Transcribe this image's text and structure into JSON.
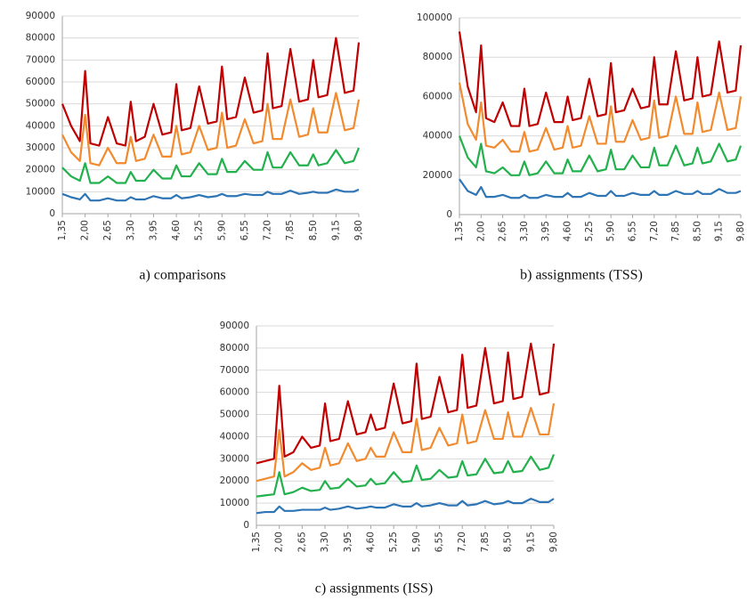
{
  "chart_data": [
    {
      "type": "line",
      "caption": "a) comparisons",
      "x": [
        1.35,
        1.6,
        1.85,
        2.0,
        2.15,
        2.4,
        2.65,
        2.9,
        3.15,
        3.3,
        3.45,
        3.7,
        3.95,
        4.2,
        4.45,
        4.6,
        4.75,
        5.0,
        5.25,
        5.5,
        5.75,
        5.9,
        6.05,
        6.3,
        6.55,
        6.8,
        7.05,
        7.2,
        7.35,
        7.6,
        7.85,
        8.1,
        8.35,
        8.5,
        8.65,
        8.9,
        9.15,
        9.4,
        9.65,
        9.8
      ],
      "xlim": [
        1.35,
        9.8
      ],
      "xticks": [
        {
          "value": 1.35,
          "label": "1,35"
        },
        {
          "value": 2.0,
          "label": "2,00"
        },
        {
          "value": 2.65,
          "label": "2,65"
        },
        {
          "value": 3.3,
          "label": "3,30"
        },
        {
          "value": 3.95,
          "label": "3,95"
        },
        {
          "value": 4.6,
          "label": "4,60"
        },
        {
          "value": 5.25,
          "label": "5,25"
        },
        {
          "value": 5.9,
          "label": "5,90"
        },
        {
          "value": 6.55,
          "label": "6,55"
        },
        {
          "value": 7.2,
          "label": "7,20"
        },
        {
          "value": 7.85,
          "label": "7,85"
        },
        {
          "value": 8.5,
          "label": "8,50"
        },
        {
          "value": 9.15,
          "label": "9,15"
        },
        {
          "value": 9.8,
          "label": "9,80"
        }
      ],
      "ylim": [
        0,
        90000
      ],
      "yticks": [
        0,
        10000,
        20000,
        30000,
        40000,
        50000,
        60000,
        70000,
        80000,
        90000
      ],
      "grid": true,
      "series": [
        {
          "color": "#c00000",
          "values": [
            50000,
            40000,
            33000,
            65000,
            32000,
            31000,
            44000,
            32000,
            31000,
            51000,
            33000,
            35000,
            50000,
            36000,
            37000,
            59000,
            38000,
            39000,
            58000,
            41000,
            42000,
            67000,
            43000,
            44000,
            62000,
            46000,
            47000,
            73000,
            48000,
            49000,
            75000,
            51000,
            52000,
            70000,
            53000,
            54000,
            80000,
            55000,
            56000,
            78000
          ]
        },
        {
          "color": "#f28a2e",
          "values": [
            36000,
            28000,
            24000,
            45000,
            23000,
            22000,
            30000,
            23000,
            23000,
            35000,
            24000,
            25000,
            36000,
            26000,
            26000,
            40000,
            27000,
            28000,
            40000,
            29000,
            30000,
            46000,
            30000,
            31000,
            43000,
            32000,
            33000,
            50000,
            34000,
            34000,
            52000,
            35000,
            36000,
            48000,
            37000,
            37000,
            55000,
            38000,
            39000,
            52000
          ]
        },
        {
          "color": "#22b14c",
          "values": [
            21000,
            17000,
            15000,
            23000,
            14000,
            14000,
            17000,
            14000,
            14000,
            19000,
            15000,
            15000,
            20000,
            16000,
            16000,
            22000,
            17000,
            17000,
            23000,
            18000,
            18000,
            25000,
            19000,
            19000,
            24000,
            20000,
            20000,
            28000,
            21000,
            21000,
            28000,
            22000,
            22000,
            27000,
            22000,
            23000,
            29000,
            23000,
            24000,
            30000
          ]
        },
        {
          "color": "#2e75b6",
          "values": [
            9000,
            7500,
            6500,
            9000,
            6000,
            6000,
            7000,
            6000,
            6000,
            7500,
            6500,
            6500,
            8000,
            7000,
            7000,
            8500,
            7000,
            7500,
            8500,
            7500,
            8000,
            9000,
            8000,
            8000,
            9000,
            8500,
            8500,
            10000,
            9000,
            9000,
            10500,
            9000,
            9500,
            10000,
            9500,
            9500,
            11000,
            10000,
            10000,
            11000
          ]
        }
      ]
    },
    {
      "type": "line",
      "caption": "b) assignments (TSS)",
      "x": [
        1.35,
        1.6,
        1.85,
        2.0,
        2.15,
        2.4,
        2.65,
        2.9,
        3.15,
        3.3,
        3.45,
        3.7,
        3.95,
        4.2,
        4.45,
        4.6,
        4.75,
        5.0,
        5.25,
        5.5,
        5.75,
        5.9,
        6.05,
        6.3,
        6.55,
        6.8,
        7.05,
        7.2,
        7.35,
        7.6,
        7.85,
        8.1,
        8.35,
        8.5,
        8.65,
        8.9,
        9.15,
        9.4,
        9.65,
        9.8
      ],
      "xlim": [
        1.35,
        9.8
      ],
      "xticks": [
        {
          "value": 1.35,
          "label": "1,35"
        },
        {
          "value": 2.0,
          "label": "2,00"
        },
        {
          "value": 2.65,
          "label": "2,65"
        },
        {
          "value": 3.3,
          "label": "3,30"
        },
        {
          "value": 3.95,
          "label": "3,95"
        },
        {
          "value": 4.6,
          "label": "4,60"
        },
        {
          "value": 5.25,
          "label": "5,25"
        },
        {
          "value": 5.9,
          "label": "5,90"
        },
        {
          "value": 6.55,
          "label": "6,55"
        },
        {
          "value": 7.2,
          "label": "7,20"
        },
        {
          "value": 7.85,
          "label": "7,85"
        },
        {
          "value": 8.5,
          "label": "8,50"
        },
        {
          "value": 9.15,
          "label": "9,15"
        },
        {
          "value": 9.8,
          "label": "9,80"
        }
      ],
      "ylim": [
        0,
        100000
      ],
      "yticks": [
        0,
        20000,
        40000,
        60000,
        80000,
        100000
      ],
      "grid": true,
      "series": [
        {
          "color": "#c00000",
          "values": [
            93000,
            65000,
            52000,
            86000,
            49000,
            47000,
            57000,
            45000,
            45000,
            64000,
            45000,
            46000,
            62000,
            47000,
            47000,
            60000,
            48000,
            49000,
            69000,
            50000,
            51000,
            77000,
            52000,
            53000,
            64000,
            54000,
            55000,
            80000,
            56000,
            56000,
            83000,
            58000,
            59000,
            80000,
            60000,
            61000,
            88000,
            62000,
            63000,
            86000
          ]
        },
        {
          "color": "#f28a2e",
          "values": [
            67000,
            46000,
            38000,
            57000,
            35000,
            34000,
            38000,
            32000,
            32000,
            42000,
            32000,
            33000,
            44000,
            33000,
            34000,
            45000,
            34000,
            35000,
            50000,
            36000,
            36000,
            55000,
            37000,
            37000,
            48000,
            38000,
            39000,
            58000,
            39000,
            40000,
            60000,
            41000,
            41000,
            57000,
            42000,
            43000,
            62000,
            43000,
            44000,
            60000
          ]
        },
        {
          "color": "#22b14c",
          "values": [
            40000,
            29000,
            24000,
            36000,
            22000,
            21000,
            24000,
            20000,
            20000,
            27000,
            20000,
            21000,
            27000,
            21000,
            21000,
            28000,
            22000,
            22000,
            30000,
            22000,
            23000,
            33000,
            23000,
            23000,
            30000,
            24000,
            24000,
            34000,
            25000,
            25000,
            35000,
            25000,
            26000,
            34000,
            26000,
            27000,
            36000,
            27000,
            28000,
            35000
          ]
        },
        {
          "color": "#2e75b6",
          "values": [
            18000,
            12000,
            10000,
            14000,
            9000,
            9000,
            10000,
            8500,
            8500,
            10000,
            8500,
            8500,
            10000,
            9000,
            9000,
            11000,
            9000,
            9000,
            11000,
            9500,
            9500,
            12000,
            9500,
            9500,
            11000,
            10000,
            10000,
            12000,
            10000,
            10000,
            12000,
            10500,
            10500,
            12000,
            10500,
            10500,
            13000,
            11000,
            11000,
            12000
          ]
        }
      ]
    },
    {
      "type": "line",
      "caption": "c) assignments (ISS)",
      "x": [
        1.35,
        1.6,
        1.85,
        2.0,
        2.15,
        2.4,
        2.65,
        2.9,
        3.15,
        3.3,
        3.45,
        3.7,
        3.95,
        4.2,
        4.45,
        4.6,
        4.75,
        5.0,
        5.25,
        5.5,
        5.75,
        5.9,
        6.05,
        6.3,
        6.55,
        6.8,
        7.05,
        7.2,
        7.35,
        7.6,
        7.85,
        8.1,
        8.35,
        8.5,
        8.65,
        8.9,
        9.15,
        9.4,
        9.65,
        9.8
      ],
      "xlim": [
        1.35,
        9.8
      ],
      "xticks": [
        {
          "value": 1.35,
          "label": "1,35"
        },
        {
          "value": 2.0,
          "label": "2,00"
        },
        {
          "value": 2.65,
          "label": "2,65"
        },
        {
          "value": 3.3,
          "label": "3,30"
        },
        {
          "value": 3.95,
          "label": "3,95"
        },
        {
          "value": 4.6,
          "label": "4,60"
        },
        {
          "value": 5.25,
          "label": "5,25"
        },
        {
          "value": 5.9,
          "label": "5,90"
        },
        {
          "value": 6.55,
          "label": "6,55"
        },
        {
          "value": 7.2,
          "label": "7,20"
        },
        {
          "value": 7.85,
          "label": "7,85"
        },
        {
          "value": 8.5,
          "label": "8,50"
        },
        {
          "value": 9.15,
          "label": "9,15"
        },
        {
          "value": 9.8,
          "label": "9,80"
        }
      ],
      "ylim": [
        0,
        90000
      ],
      "yticks": [
        0,
        10000,
        20000,
        30000,
        40000,
        50000,
        60000,
        70000,
        80000,
        90000
      ],
      "grid": true,
      "series": [
        {
          "color": "#c00000",
          "values": [
            28000,
            29000,
            30000,
            63000,
            31000,
            33000,
            40000,
            35000,
            36000,
            55000,
            38000,
            39000,
            56000,
            41000,
            42000,
            50000,
            43000,
            44000,
            64000,
            46000,
            47000,
            73000,
            48000,
            49000,
            67000,
            51000,
            52000,
            77000,
            53000,
            54000,
            80000,
            55000,
            56000,
            78000,
            57000,
            58000,
            82000,
            59000,
            60000,
            82000
          ]
        },
        {
          "color": "#f28a2e",
          "values": [
            20000,
            21000,
            22000,
            43000,
            22000,
            24000,
            28000,
            25000,
            26000,
            35000,
            27000,
            28000,
            37000,
            29000,
            30000,
            35000,
            31000,
            31000,
            42000,
            33000,
            33000,
            48000,
            34000,
            35000,
            44000,
            36000,
            37000,
            50000,
            37000,
            38000,
            52000,
            39000,
            39000,
            51000,
            40000,
            40000,
            53000,
            41000,
            41000,
            55000
          ]
        },
        {
          "color": "#22b14c",
          "values": [
            13000,
            13500,
            14000,
            24000,
            14000,
            15000,
            17000,
            15500,
            16000,
            20000,
            16500,
            17000,
            21000,
            17500,
            18000,
            21000,
            18500,
            19000,
            24000,
            19500,
            20000,
            27000,
            20500,
            21000,
            25000,
            21500,
            22000,
            29000,
            22500,
            23000,
            30000,
            23500,
            24000,
            29000,
            24000,
            24500,
            31000,
            25000,
            26000,
            32000
          ]
        },
        {
          "color": "#2e75b6",
          "values": [
            5500,
            6000,
            6000,
            8500,
            6500,
            6500,
            7000,
            7000,
            7000,
            8000,
            7000,
            7500,
            8500,
            7500,
            8000,
            8500,
            8000,
            8000,
            9500,
            8500,
            8500,
            10000,
            8500,
            9000,
            10000,
            9000,
            9000,
            11000,
            9000,
            9500,
            11000,
            9500,
            10000,
            11000,
            10000,
            10000,
            12000,
            10500,
            10500,
            12000
          ]
        }
      ]
    }
  ]
}
